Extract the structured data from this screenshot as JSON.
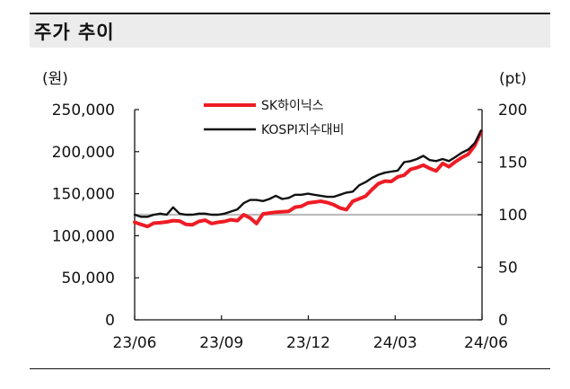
{
  "header": {
    "title": "주가 추이"
  },
  "chart_data": {
    "type": "line",
    "left_unit": "(원)",
    "right_unit": "(pt)",
    "x_ticks": [
      "23/06",
      "23/09",
      "23/12",
      "24/03",
      "24/06"
    ],
    "y_left_ticks": [
      "250,000",
      "200,000",
      "150,000",
      "100,000",
      "50,000",
      "0"
    ],
    "y_right_ticks": [
      "200",
      "150",
      "100",
      "50",
      "0"
    ],
    "ylim_left": [
      0,
      250000
    ],
    "ylim_right": [
      0,
      200
    ],
    "reference_line": 100,
    "series": [
      {
        "name": "SK하이닉스",
        "axis": "left",
        "color": "#ee1c25",
        "x": [
          "2023-06-01",
          "2023-06-08",
          "2023-06-15",
          "2023-06-22",
          "2023-06-29",
          "2023-07-06",
          "2023-07-13",
          "2023-07-20",
          "2023-07-27",
          "2023-08-03",
          "2023-08-10",
          "2023-08-17",
          "2023-08-24",
          "2023-08-31",
          "2023-09-07",
          "2023-09-14",
          "2023-09-21",
          "2023-09-28",
          "2023-10-05",
          "2023-10-12",
          "2023-10-19",
          "2023-10-26",
          "2023-11-02",
          "2023-11-09",
          "2023-11-16",
          "2023-11-23",
          "2023-11-30",
          "2023-12-07",
          "2023-12-14",
          "2023-12-21",
          "2023-12-28",
          "2024-01-04",
          "2024-01-11",
          "2024-01-18",
          "2024-01-25",
          "2024-02-01",
          "2024-02-08",
          "2024-02-15",
          "2024-02-22",
          "2024-02-29",
          "2024-03-07",
          "2024-03-14",
          "2024-03-21",
          "2024-03-28",
          "2024-04-04",
          "2024-04-11",
          "2024-04-18",
          "2024-04-25",
          "2024-05-02",
          "2024-05-09",
          "2024-05-16",
          "2024-05-23",
          "2024-05-30",
          "2024-06-06",
          "2024-06-13"
        ],
        "values": [
          116000,
          113500,
          111000,
          115000,
          115500,
          116500,
          118000,
          117500,
          113500,
          113000,
          117000,
          118500,
          114500,
          116000,
          117000,
          119000,
          118000,
          125000,
          121000,
          114500,
          126000,
          127000,
          128000,
          128500,
          129000,
          134000,
          135000,
          139000,
          140000,
          141000,
          139500,
          137000,
          133000,
          131000,
          141000,
          144000,
          147000,
          155000,
          162000,
          165000,
          164500,
          170000,
          172000,
          179000,
          181000,
          184000,
          180000,
          177000,
          186000,
          182000,
          188000,
          193000,
          197000,
          207000,
          224000
        ]
      },
      {
        "name": "KOSPI지수대비",
        "axis": "right",
        "color": "#111111",
        "x": [
          "2023-06-01",
          "2023-06-08",
          "2023-06-15",
          "2023-06-22",
          "2023-06-29",
          "2023-07-06",
          "2023-07-13",
          "2023-07-20",
          "2023-07-27",
          "2023-08-03",
          "2023-08-10",
          "2023-08-17",
          "2023-08-24",
          "2023-08-31",
          "2023-09-07",
          "2023-09-14",
          "2023-09-21",
          "2023-09-28",
          "2023-10-05",
          "2023-10-12",
          "2023-10-19",
          "2023-10-26",
          "2023-11-02",
          "2023-11-09",
          "2023-11-16",
          "2023-11-23",
          "2023-11-30",
          "2023-12-07",
          "2023-12-14",
          "2023-12-21",
          "2023-12-28",
          "2024-01-04",
          "2024-01-11",
          "2024-01-18",
          "2024-01-25",
          "2024-02-01",
          "2024-02-08",
          "2024-02-15",
          "2024-02-22",
          "2024-02-29",
          "2024-03-07",
          "2024-03-14",
          "2024-03-21",
          "2024-03-28",
          "2024-04-04",
          "2024-04-11",
          "2024-04-18",
          "2024-04-25",
          "2024-05-02",
          "2024-05-09",
          "2024-05-16",
          "2024-05-23",
          "2024-05-30",
          "2024-06-06",
          "2024-06-13"
        ],
        "values": [
          100,
          98,
          98,
          100,
          101,
          100,
          107,
          101,
          100,
          100,
          101,
          101,
          100,
          100,
          101,
          103,
          105,
          111,
          114,
          114,
          113,
          115,
          118,
          115,
          116,
          119,
          119,
          120,
          119,
          118,
          117,
          117,
          119,
          121,
          122,
          128,
          131,
          135,
          138,
          140,
          141,
          142,
          150,
          151,
          153,
          156,
          152,
          151,
          153,
          151,
          155,
          159,
          162,
          168,
          180
        ]
      }
    ]
  }
}
